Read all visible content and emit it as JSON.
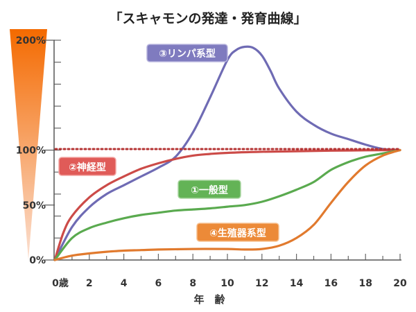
{
  "title": "「スキャモンの発達・発育曲線」",
  "colors": {
    "general": "#5aaa4f",
    "neural": "#cc4b48",
    "lymphoid": "#6f6bb4",
    "reproductive": "#e17a2e",
    "reference_line": "#b43232",
    "axis": "#555555",
    "tick": "#666666",
    "wedge_top": "#f46a00",
    "wedge_bottom": "#fbe0d2"
  },
  "chart_data": {
    "type": "line",
    "title": "「スキャモンの発達・発育曲線」",
    "xlabel": "年　齢",
    "ylabel": "",
    "xlim": [
      0,
      20
    ],
    "ylim": [
      0,
      200
    ],
    "x_ticks": [
      {
        "value": 0,
        "label": "0歳"
      },
      {
        "value": 2,
        "label": "2"
      },
      {
        "value": 4,
        "label": "4"
      },
      {
        "value": 6,
        "label": "6"
      },
      {
        "value": 8,
        "label": "8"
      },
      {
        "value": 10,
        "label": "10"
      },
      {
        "value": 12,
        "label": "12"
      },
      {
        "value": 14,
        "label": "14"
      },
      {
        "value": 16,
        "label": "16"
      },
      {
        "value": 18,
        "label": "18"
      },
      {
        "value": 20,
        "label": "20"
      }
    ],
    "y_ticks": [
      {
        "value": 0,
        "label": "0%"
      },
      {
        "value": 50,
        "label": "50%"
      },
      {
        "value": 100,
        "label": "100%"
      },
      {
        "value": 200,
        "label": "200%"
      }
    ],
    "y_minor_step": 20,
    "reference_line": {
      "y": 100,
      "style": "dotted"
    },
    "series": [
      {
        "key": "lymphoid",
        "name": "③リンパ系型",
        "x": [
          0,
          1,
          2,
          3,
          4,
          5,
          6,
          7,
          8,
          9,
          10,
          10.5,
          11,
          11.5,
          12,
          12.5,
          13,
          14,
          15,
          16,
          17,
          18,
          19,
          20
        ],
        "values": [
          0,
          30,
          48,
          60,
          68,
          76,
          84,
          94,
          116,
          148,
          182,
          191,
          194,
          193,
          186,
          172,
          156,
          135,
          123,
          115,
          110,
          105,
          101,
          100
        ]
      },
      {
        "key": "neural",
        "name": "②神経型",
        "x": [
          0,
          0.5,
          1,
          2,
          3,
          4,
          5,
          6,
          7,
          8,
          9,
          10,
          12,
          14,
          16,
          18,
          20
        ],
        "values": [
          0,
          25,
          40,
          57,
          68,
          76,
          83,
          88,
          92,
          95,
          96.5,
          97.5,
          98.5,
          99,
          99.5,
          99.8,
          100
        ]
      },
      {
        "key": "general",
        "name": "①一般型",
        "x": [
          0,
          1,
          2,
          3,
          4,
          5,
          6,
          7,
          8,
          9,
          10,
          11,
          12,
          13,
          14,
          15,
          16,
          17,
          18,
          19,
          20
        ],
        "values": [
          0,
          20,
          29,
          34,
          38,
          41,
          43,
          45,
          46,
          47,
          48.5,
          50,
          53,
          58,
          64,
          71,
          82,
          89,
          94,
          97,
          100
        ]
      },
      {
        "key": "reproductive",
        "name": "④生殖器系型",
        "x": [
          0,
          1,
          2,
          3,
          4,
          5,
          6,
          8,
          10,
          11,
          12,
          13,
          14,
          15,
          16,
          17,
          18,
          19,
          20
        ],
        "values": [
          0,
          4,
          6,
          7.5,
          8.5,
          9,
          9.5,
          10,
          10,
          9.5,
          10,
          13,
          20,
          32,
          52,
          71,
          86,
          95,
          100
        ]
      }
    ],
    "series_label_positions": "inline"
  }
}
